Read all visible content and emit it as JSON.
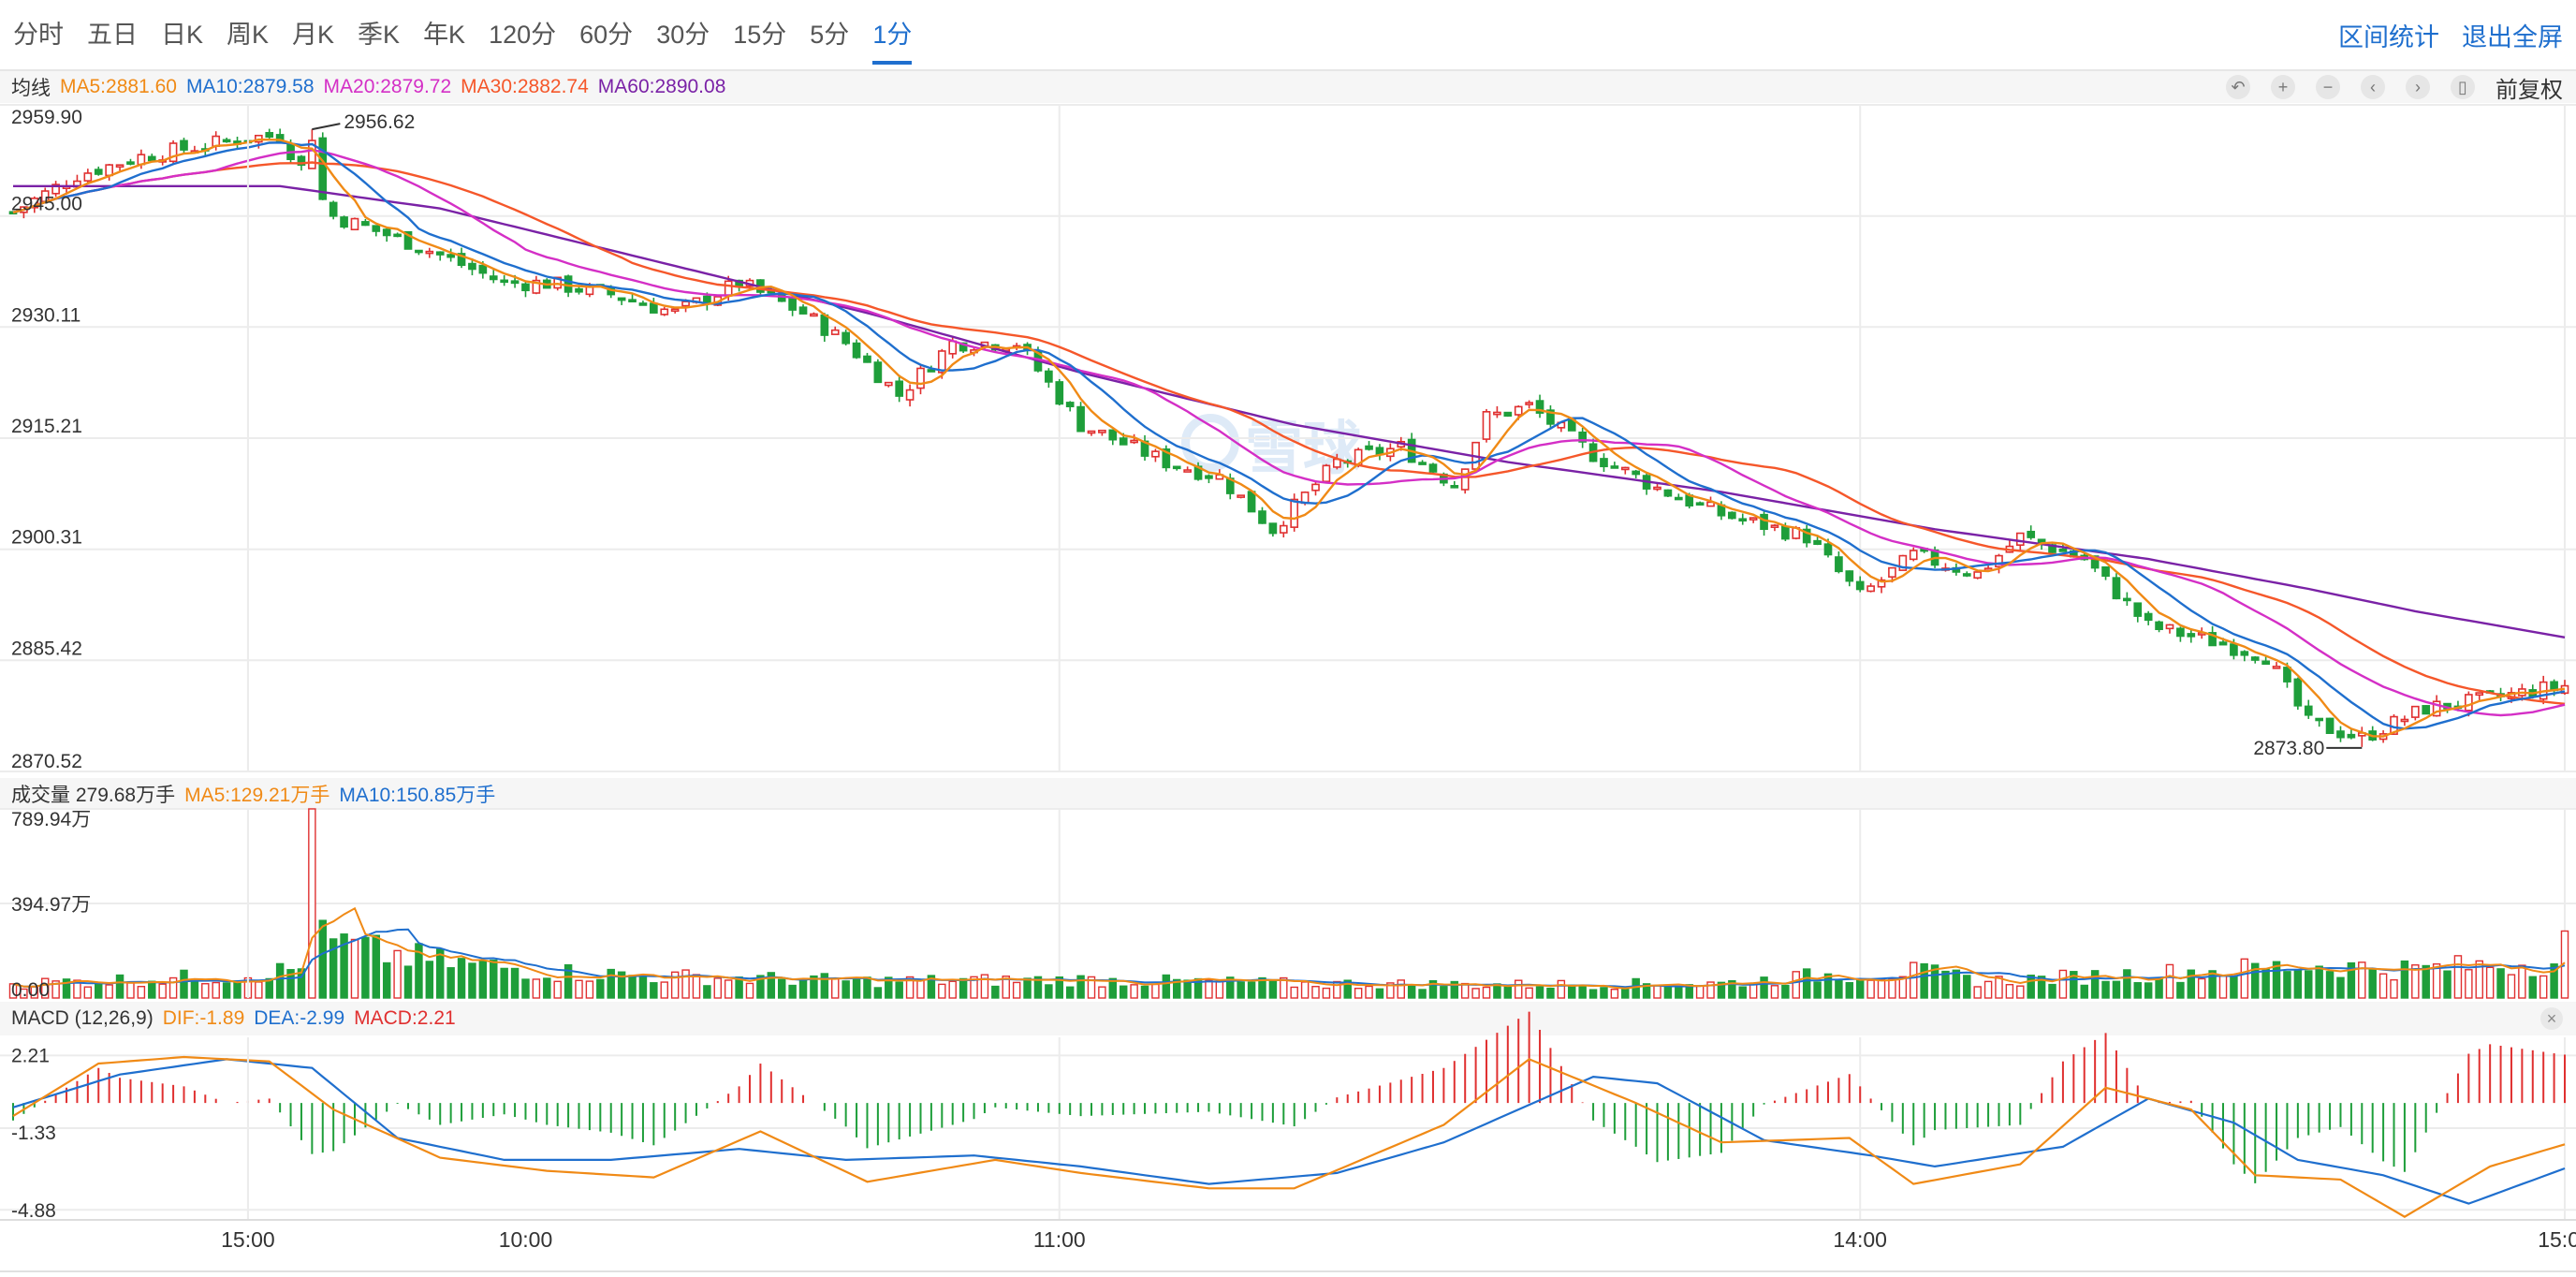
{
  "tabs": [
    "分时",
    "五日",
    "日K",
    "周K",
    "月K",
    "季K",
    "年K",
    "120分",
    "60分",
    "30分",
    "15分",
    "5分",
    "1分"
  ],
  "active_tab": "1分",
  "right_tabs": [
    "区间统计",
    "退出全屏"
  ],
  "tools": {
    "icons": [
      "undo-icon",
      "zoom-in-icon",
      "zoom-out-icon",
      "pan-left-icon",
      "pan-right-icon",
      "candle-style-icon"
    ],
    "adjust_label": "前复权"
  },
  "ma_legend": {
    "label": "均线",
    "items": [
      {
        "text": "MA5:2881.60",
        "color": "#f08a16"
      },
      {
        "text": "MA10:2879.58",
        "color": "#1f6fce"
      },
      {
        "text": "MA20:2879.72",
        "color": "#d42fc6"
      },
      {
        "text": "MA30:2882.74",
        "color": "#f5572a"
      },
      {
        "text": "MA60:2890.08",
        "color": "#7a22a6"
      }
    ]
  },
  "vol_legend": {
    "label": "成交量 279.68万手",
    "items": [
      {
        "text": "MA5:129.21万手",
        "color": "#f08a16"
      },
      {
        "text": "MA10:150.85万手",
        "color": "#1f6fce"
      }
    ]
  },
  "macd_legend": {
    "label": "MACD (12,26,9)",
    "items": [
      {
        "text": "DIF:-1.89",
        "color": "#f08a16"
      },
      {
        "text": "DEA:-2.99",
        "color": "#1f6fce"
      },
      {
        "text": "MACD:2.21",
        "color": "#e03030"
      }
    ]
  },
  "watermark": "雪球",
  "colors": {
    "up": "#e03030",
    "down": "#1e9e3a",
    "ma5": "#f08a16",
    "ma10": "#1f6fce",
    "ma20": "#d42fc6",
    "ma30": "#f5572a",
    "ma60": "#7a22a6"
  },
  "chart_data": {
    "type": "candlestick",
    "bars": 240,
    "x_ticks": [
      {
        "label": "15:00",
        "bar": 22
      },
      {
        "label": "10:00",
        "bar": 48
      },
      {
        "label": "11:00",
        "bar": 98
      },
      {
        "label": "14:00",
        "bar": 173
      },
      {
        "label": "15:00",
        "bar": 239
      }
    ],
    "price": {
      "ylim": [
        2870.52,
        2959.9
      ],
      "ticks": [
        "2959.90",
        "2945.00",
        "2930.11",
        "2915.21",
        "2900.31",
        "2885.42",
        "2870.52"
      ],
      "high_label": "2956.62",
      "high_value": 2956.62,
      "high_bar": 28,
      "low_label": "2873.80",
      "low_value": 2873.8,
      "low_bar": 220,
      "knots": [
        [
          0,
          2945.5
        ],
        [
          6,
          2950.5
        ],
        [
          12,
          2953
        ],
        [
          22,
          2955.5
        ],
        [
          25,
          2955.8
        ],
        [
          30,
          2945
        ],
        [
          38,
          2941
        ],
        [
          46,
          2936
        ],
        [
          50,
          2936
        ],
        [
          56,
          2934.5
        ],
        [
          62,
          2932
        ],
        [
          68,
          2936
        ],
        [
          74,
          2932
        ],
        [
          78,
          2928
        ],
        [
          83,
          2921
        ],
        [
          88,
          2928
        ],
        [
          94,
          2928
        ],
        [
          100,
          2917
        ],
        [
          108,
          2912
        ],
        [
          113,
          2910
        ],
        [
          118,
          2903
        ],
        [
          124,
          2912
        ],
        [
          130,
          2914
        ],
        [
          135,
          2909
        ],
        [
          138,
          2918
        ],
        [
          142,
          2919.5
        ],
        [
          148,
          2913
        ],
        [
          154,
          2908.5
        ],
        [
          160,
          2905
        ],
        [
          168,
          2902
        ],
        [
          173,
          2894
        ],
        [
          178,
          2899.5
        ],
        [
          184,
          2897
        ],
        [
          188,
          2902
        ],
        [
          194,
          2899
        ],
        [
          200,
          2890
        ],
        [
          206,
          2888
        ],
        [
          211,
          2886
        ],
        [
          215,
          2877
        ],
        [
          220,
          2875
        ],
        [
          226,
          2879
        ],
        [
          231,
          2880
        ],
        [
          237,
          2881.6
        ]
      ],
      "ma60_knots": [
        [
          0,
          2949
        ],
        [
          25,
          2949
        ],
        [
          40,
          2946
        ],
        [
          60,
          2939
        ],
        [
          80,
          2932
        ],
        [
          100,
          2924
        ],
        [
          120,
          2917
        ],
        [
          140,
          2912
        ],
        [
          160,
          2908
        ],
        [
          180,
          2903
        ],
        [
          200,
          2899
        ],
        [
          215,
          2895
        ],
        [
          225,
          2892
        ],
        [
          239,
          2888.5
        ]
      ],
      "last": {
        "ma5": 2881.6,
        "ma10": 2879.58,
        "ma20": 2879.72,
        "ma30": 2882.74,
        "ma60": 2890.08
      }
    },
    "volume": {
      "ylim": [
        0,
        789.94
      ],
      "ticks": [
        "789.94万",
        "394.97万",
        "0.00"
      ],
      "unit": "万手",
      "spike_bar": 28,
      "spike_value": 789.94,
      "last_value": 279.68,
      "knots": [
        [
          0,
          60
        ],
        [
          20,
          90
        ],
        [
          27,
          120
        ],
        [
          28,
          789.94
        ],
        [
          29,
          240
        ],
        [
          34,
          190
        ],
        [
          40,
          150
        ],
        [
          50,
          110
        ],
        [
          60,
          90
        ],
        [
          80,
          70
        ],
        [
          100,
          75
        ],
        [
          120,
          60
        ],
        [
          140,
          55
        ],
        [
          160,
          60
        ],
        [
          170,
          95
        ],
        [
          178,
          110
        ],
        [
          185,
          70
        ],
        [
          200,
          100
        ],
        [
          215,
          135
        ],
        [
          225,
          120
        ],
        [
          238,
          150
        ],
        [
          239,
          279.68
        ]
      ],
      "ma5_last": 129.21,
      "ma10_last": 150.85
    },
    "macd": {
      "ylim": [
        -5.3,
        3.0
      ],
      "ticks": [
        "2.21",
        "-1.33",
        "-4.88"
      ],
      "dif_knots": [
        [
          0,
          -0.6
        ],
        [
          8,
          1.8
        ],
        [
          16,
          2.1
        ],
        [
          24,
          1.9
        ],
        [
          30,
          -0.3
        ],
        [
          40,
          -2.5
        ],
        [
          50,
          -3.1
        ],
        [
          60,
          -3.4
        ],
        [
          70,
          -1.3
        ],
        [
          80,
          -3.6
        ],
        [
          92,
          -2.6
        ],
        [
          100,
          -3.2
        ],
        [
          112,
          -3.9
        ],
        [
          120,
          -3.9
        ],
        [
          134,
          -1.0
        ],
        [
          142,
          2.0
        ],
        [
          152,
          0.0
        ],
        [
          160,
          -1.8
        ],
        [
          172,
          -1.6
        ],
        [
          178,
          -3.7
        ],
        [
          188,
          -2.8
        ],
        [
          196,
          0.7
        ],
        [
          204,
          -0.3
        ],
        [
          210,
          -3.3
        ],
        [
          218,
          -3.5
        ],
        [
          224,
          -5.2
        ],
        [
          232,
          -2.9
        ],
        [
          239,
          -1.89
        ]
      ],
      "dea_knots": [
        [
          0,
          -0.2
        ],
        [
          10,
          1.3
        ],
        [
          20,
          2.0
        ],
        [
          28,
          1.6
        ],
        [
          36,
          -1.6
        ],
        [
          46,
          -2.6
        ],
        [
          56,
          -2.6
        ],
        [
          68,
          -2.1
        ],
        [
          78,
          -2.6
        ],
        [
          90,
          -2.4
        ],
        [
          100,
          -2.9
        ],
        [
          112,
          -3.7
        ],
        [
          124,
          -3.2
        ],
        [
          134,
          -1.8
        ],
        [
          148,
          1.2
        ],
        [
          154,
          0.9
        ],
        [
          164,
          -1.7
        ],
        [
          174,
          -2.4
        ],
        [
          180,
          -2.9
        ],
        [
          192,
          -2.0
        ],
        [
          200,
          0.2
        ],
        [
          208,
          -0.9
        ],
        [
          214,
          -2.6
        ],
        [
          222,
          -3.3
        ],
        [
          230,
          -4.6
        ],
        [
          239,
          -2.99
        ]
      ],
      "hist_last": 2.21
    }
  }
}
